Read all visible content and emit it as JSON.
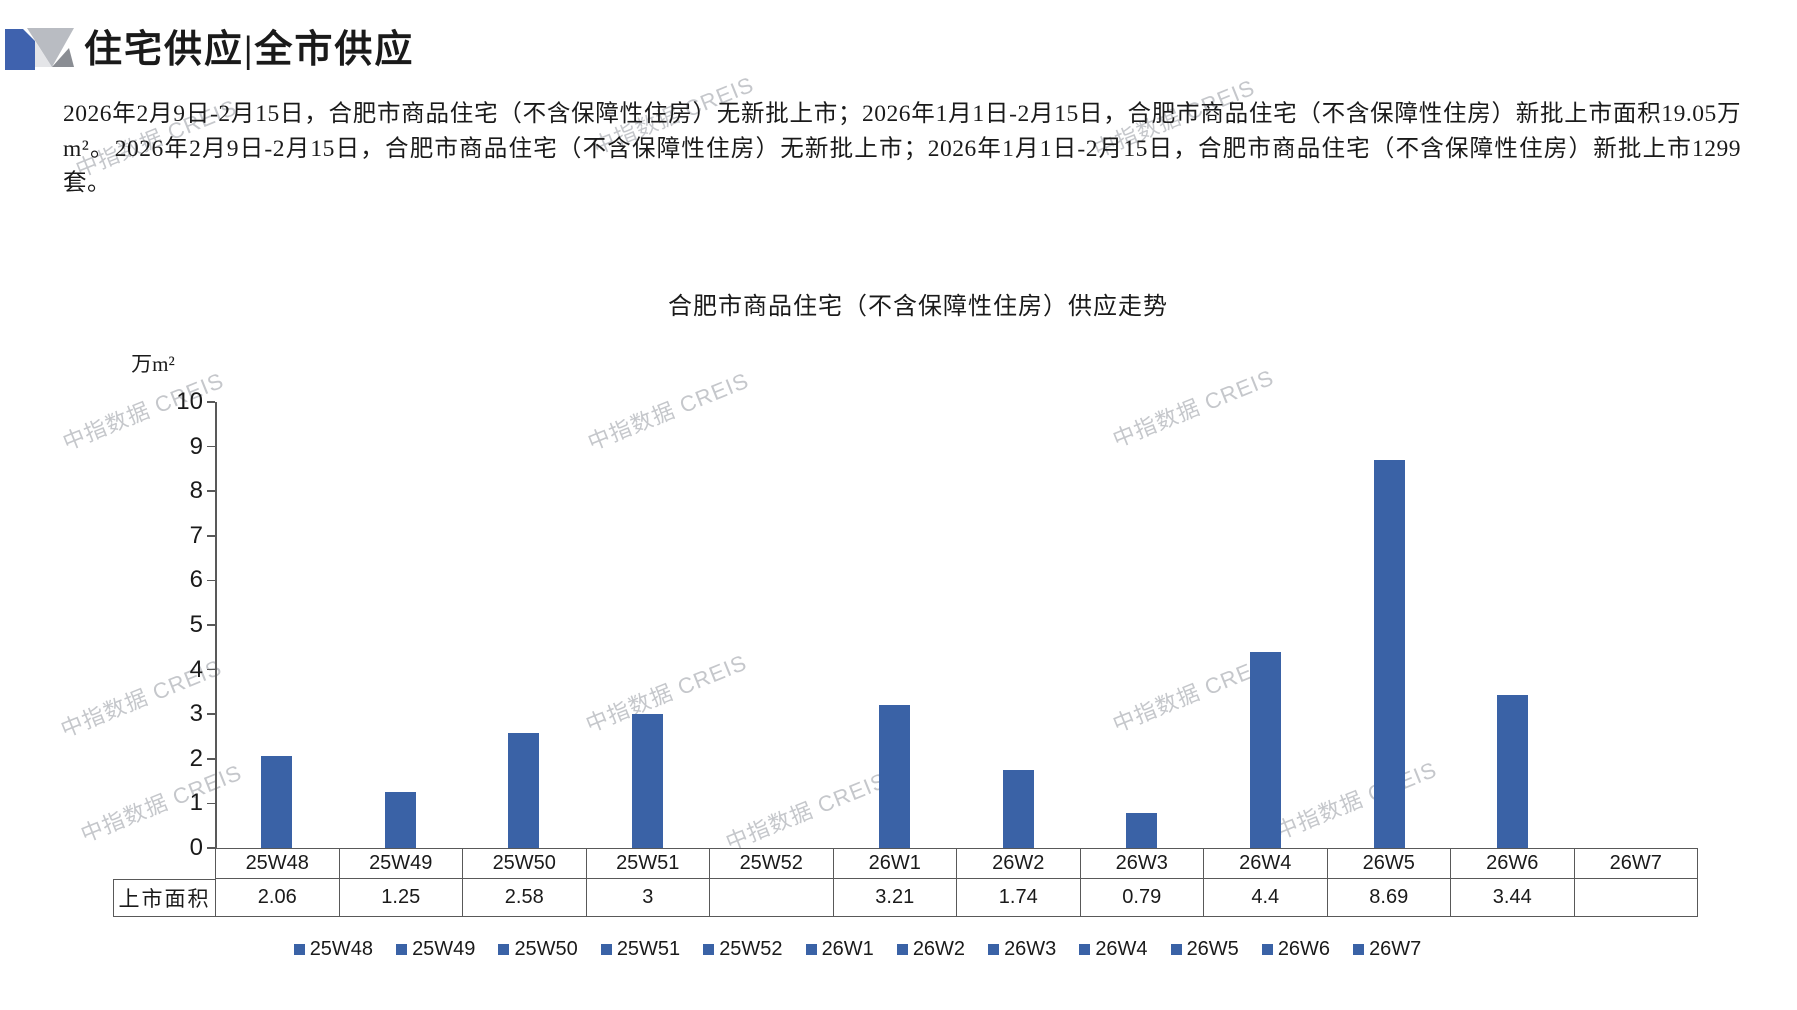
{
  "page": {
    "title": "住宅供应|全市供应",
    "paragraph": "2026年2月9日-2月15日，合肥市商品住宅（不含保障性住房）无新批上市；2026年1月1日-2月15日，合肥市商品住宅（不含保障性住房）新批上市面积19.05万m²。2026年2月9日-2月15日，合肥市商品住宅（不含保障性住房）无新批上市；2026年1月1日-2月15日，合肥市商品住宅（不含保障性住房）新批上市1299套。",
    "watermark_text": "中指数据 CREIS"
  },
  "chart_data": {
    "type": "bar",
    "title": "合肥市商品住宅（不含保障性住房）供应走势",
    "ylabel": "万m²",
    "xlabel": "",
    "ylim": [
      0,
      10
    ],
    "ytick_step": 1,
    "grid": false,
    "legend_position": "bottom",
    "bar_color": "#3A62A6",
    "axis_color": "#595959",
    "categories": [
      "25W48",
      "25W49",
      "25W50",
      "25W51",
      "25W52",
      "26W1",
      "26W2",
      "26W3",
      "26W4",
      "26W5",
      "26W6",
      "26W7"
    ],
    "series": [
      {
        "name": "上市面积",
        "values": [
          2.06,
          1.25,
          2.58,
          3,
          null,
          3.21,
          1.74,
          0.79,
          4.4,
          8.69,
          3.44,
          null
        ]
      }
    ],
    "value_labels": [
      "2.06",
      "1.25",
      "2.58",
      "3",
      "",
      "3.21",
      "1.74",
      "0.79",
      "4.4",
      "8.69",
      "3.44",
      ""
    ],
    "table_row_header": "上市面积",
    "legend": [
      "25W48",
      "25W49",
      "25W50",
      "25W51",
      "25W52",
      "26W1",
      "26W2",
      "26W3",
      "26W4",
      "26W5",
      "26W6",
      "26W7"
    ]
  }
}
